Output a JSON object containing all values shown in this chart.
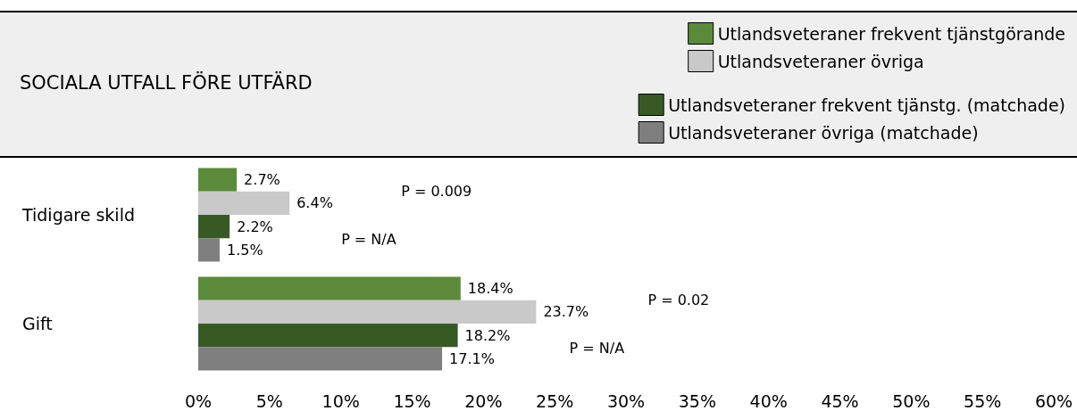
{
  "chart_data": {
    "type": "bar",
    "orientation": "horizontal",
    "title": "SOCIALA UTFALL FÖRE UTFÄRD",
    "categories": [
      "Tidigare skild",
      "Gift"
    ],
    "series": [
      {
        "name": "Utlandsveteraner frekvent tjänstgörande",
        "color": "#5a8a3a",
        "values": [
          2.7,
          18.4
        ],
        "value_labels": [
          "2.7%",
          "18.4%"
        ]
      },
      {
        "name": "Utlandsveteraner övriga",
        "color": "#c9c9c9",
        "values": [
          6.4,
          23.7
        ],
        "value_labels": [
          "6.4%",
          "23.7%"
        ]
      },
      {
        "name": "Utlandsveteraner frekvent tjänstg. (matchade)",
        "color": "#375a25",
        "values": [
          2.2,
          18.2
        ],
        "value_labels": [
          "2.2%",
          "18.2%"
        ]
      },
      {
        "name": "Utlandsveteraner övriga (matchade)",
        "color": "#7f7f7f",
        "values": [
          1.5,
          17.1
        ],
        "value_labels": [
          "1.5%",
          "17.1%"
        ]
      }
    ],
    "xlim": [
      0,
      60
    ],
    "xticks": [
      {
        "value": 0,
        "label": "0%"
      },
      {
        "value": 5,
        "label": "5%"
      },
      {
        "value": 10,
        "label": "10%"
      },
      {
        "value": 15,
        "label": "15%"
      },
      {
        "value": 20,
        "label": "20%"
      },
      {
        "value": 25,
        "label": "25%"
      },
      {
        "value": 30,
        "label": "30%"
      },
      {
        "value": 35,
        "label": "35%"
      },
      {
        "value": 40,
        "label": "40%"
      },
      {
        "value": 45,
        "label": "45%"
      },
      {
        "value": 50,
        "label": "50%"
      },
      {
        "value": 55,
        "label": "55%"
      },
      {
        "value": 60,
        "label": "60%"
      }
    ],
    "annotations": [
      "P = 0.009",
      "P = N/A",
      "P = 0.02",
      "P = N/A"
    ],
    "legend": "top right",
    "grid": false
  }
}
